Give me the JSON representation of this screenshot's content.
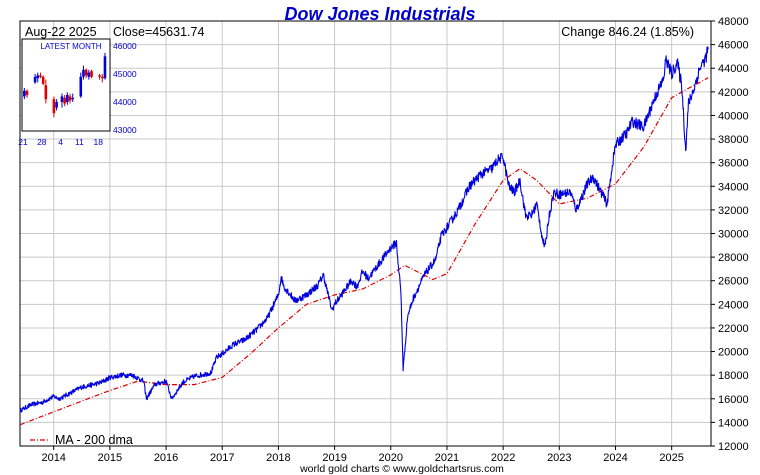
{
  "chart_data": {
    "type": "line",
    "title": "Dow Jones Industrials",
    "header": {
      "date": "Aug-22  2025",
      "close": "Close=45631.74",
      "change": "Change 846.24 (1.85%)"
    },
    "y_ticks": [
      "12000",
      "14000",
      "16000",
      "18000",
      "20000",
      "22000",
      "24000",
      "26000",
      "28000",
      "30000",
      "32000",
      "34000",
      "36000",
      "38000",
      "40000",
      "42000",
      "44000",
      "46000",
      "48000"
    ],
    "ylim": [
      12000,
      48000
    ],
    "x_ticks": [
      "2014",
      "2015",
      "2016",
      "2017",
      "2018",
      "2019",
      "2020",
      "2021",
      "2022",
      "2023",
      "2024",
      "2025"
    ],
    "xlim": [
      2013.4,
      2025.7
    ],
    "grid": true,
    "legend": {
      "ma_label": "MA - 200 dma",
      "placement": "bottom-left"
    },
    "footer": "world gold charts © www.goldchartsrus.com",
    "colors": {
      "price": "#0000dd",
      "ma": "#dd0000",
      "title": "#0000cc",
      "grid": "#c8c8c8"
    },
    "series": [
      {
        "key": "price",
        "x": [
          2013.4,
          2013.6,
          2013.8,
          2014.0,
          2014.1,
          2014.3,
          2014.5,
          2014.7,
          2014.85,
          2015.0,
          2015.2,
          2015.4,
          2015.6,
          2015.65,
          2015.8,
          2016.0,
          2016.1,
          2016.3,
          2016.5,
          2016.8,
          2016.9,
          2017.0,
          2017.2,
          2017.4,
          2017.6,
          2017.8,
          2018.0,
          2018.05,
          2018.1,
          2018.3,
          2018.5,
          2018.7,
          2018.8,
          2018.95,
          2019.0,
          2019.3,
          2019.4,
          2019.5,
          2019.6,
          2019.8,
          2020.0,
          2020.1,
          2020.18,
          2020.22,
          2020.3,
          2020.4,
          2020.6,
          2020.8,
          2020.9,
          2021.0,
          2021.2,
          2021.4,
          2021.6,
          2021.8,
          2021.9,
          2022.0,
          2022.1,
          2022.2,
          2022.3,
          2022.4,
          2022.5,
          2022.6,
          2022.7,
          2022.75,
          2022.8,
          2022.9,
          2023.0,
          2023.2,
          2023.3,
          2023.5,
          2023.6,
          2023.8,
          2023.85,
          2023.95,
          2024.0,
          2024.2,
          2024.3,
          2024.5,
          2024.7,
          2024.85,
          2024.9,
          2025.0,
          2025.1,
          2025.18,
          2025.25,
          2025.3,
          2025.4,
          2025.5,
          2025.6,
          2025.65
        ],
        "y": [
          15000,
          15500,
          15700,
          16200,
          16000,
          16500,
          17000,
          17200,
          17400,
          17800,
          18000,
          18000,
          17500,
          16000,
          17200,
          17500,
          16000,
          17400,
          17900,
          18200,
          19500,
          19800,
          20600,
          21000,
          21800,
          22800,
          24800,
          26300,
          25500,
          24300,
          24800,
          25600,
          26500,
          23500,
          24000,
          26000,
          25500,
          26800,
          26200,
          27500,
          28800,
          29200,
          25000,
          18500,
          23000,
          24500,
          26500,
          27800,
          29800,
          30500,
          32000,
          34000,
          35000,
          35500,
          36200,
          36500,
          34000,
          33500,
          34500,
          31500,
          31500,
          32500,
          29500,
          28800,
          31000,
          33500,
          33300,
          33500,
          32000,
          34200,
          34800,
          33000,
          32500,
          36000,
          37500,
          38500,
          39500,
          39000,
          41500,
          43000,
          44800,
          43500,
          44500,
          42500,
          37000,
          41000,
          42300,
          44000,
          44800,
          45600
        ]
      },
      {
        "key": "ma",
        "x": [
          2013.4,
          2014.0,
          2014.5,
          2015.0,
          2015.5,
          2016.0,
          2016.5,
          2017.0,
          2017.5,
          2018.0,
          2018.5,
          2019.0,
          2019.5,
          2020.0,
          2020.25,
          2020.5,
          2020.75,
          2021.0,
          2021.5,
          2022.0,
          2022.3,
          2022.6,
          2023.0,
          2023.5,
          2024.0,
          2024.5,
          2025.0,
          2025.3,
          2025.5,
          2025.65
        ],
        "y": [
          13800,
          14900,
          15800,
          16700,
          17500,
          17200,
          17200,
          17800,
          19800,
          22000,
          24000,
          24800,
          25300,
          26500,
          27300,
          26700,
          26100,
          26600,
          30800,
          34500,
          35500,
          34500,
          32500,
          33000,
          34200,
          37300,
          41500,
          42300,
          42800,
          43200
        ]
      }
    ],
    "inset": {
      "title": "LATEST MONTH",
      "y_ticks": [
        "43000",
        "44000",
        "45000",
        "46000"
      ],
      "ylim": [
        43000,
        46000
      ],
      "x_ticks": [
        "21",
        "28",
        "4",
        "11",
        "18"
      ],
      "x_tick_days": [
        0,
        7,
        14,
        21,
        28
      ],
      "xlim": [
        0,
        32
      ],
      "candles": [
        {
          "x": 0.5,
          "o": 44200,
          "c": 44400,
          "h": 44500,
          "l": 44100
        },
        {
          "x": 1.5,
          "o": 44400,
          "c": 44250,
          "h": 44450,
          "l": 44150
        },
        {
          "x": 4.5,
          "o": 44700,
          "c": 44900,
          "h": 45000,
          "l": 44650
        },
        {
          "x": 5.5,
          "o": 44850,
          "c": 44950,
          "h": 45050,
          "l": 44700
        },
        {
          "x": 6.5,
          "o": 44950,
          "c": 44900,
          "h": 45050,
          "l": 44850
        },
        {
          "x": 7.5,
          "o": 44900,
          "c": 44650,
          "h": 44950,
          "l": 44600
        },
        {
          "x": 8.5,
          "o": 44600,
          "c": 44100,
          "h": 44800,
          "l": 43950
        },
        {
          "x": 11.5,
          "o": 44100,
          "c": 43600,
          "h": 44200,
          "l": 43450
        },
        {
          "x": 12.5,
          "o": 43800,
          "c": 44000,
          "h": 44100,
          "l": 43700
        },
        {
          "x": 14.5,
          "o": 44000,
          "c": 44200,
          "h": 44300,
          "l": 43800
        },
        {
          "x": 15.5,
          "o": 44150,
          "c": 43950,
          "h": 44250,
          "l": 43850
        },
        {
          "x": 16.5,
          "o": 44000,
          "c": 44250,
          "h": 44350,
          "l": 43900
        },
        {
          "x": 17.5,
          "o": 44200,
          "c": 44050,
          "h": 44300,
          "l": 43950
        },
        {
          "x": 18.5,
          "o": 44100,
          "c": 44150,
          "h": 44300,
          "l": 44000
        },
        {
          "x": 21.5,
          "o": 44200,
          "c": 44900,
          "h": 45050,
          "l": 44150
        },
        {
          "x": 22.5,
          "o": 44900,
          "c": 45150,
          "h": 45300,
          "l": 44800
        },
        {
          "x": 23.5,
          "o": 45150,
          "c": 44950,
          "h": 45200,
          "l": 44850
        },
        {
          "x": 24.5,
          "o": 44900,
          "c": 45050,
          "h": 45150,
          "l": 44800
        },
        {
          "x": 25.5,
          "o": 45100,
          "c": 44900,
          "h": 45150,
          "l": 44850
        },
        {
          "x": 28.5,
          "o": 44950,
          "c": 44900,
          "h": 45000,
          "l": 44800
        },
        {
          "x": 29.5,
          "o": 44900,
          "c": 44850,
          "h": 45000,
          "l": 44700
        },
        {
          "x": 30.5,
          "o": 44850,
          "c": 45631,
          "h": 45750,
          "l": 44800
        }
      ]
    }
  }
}
